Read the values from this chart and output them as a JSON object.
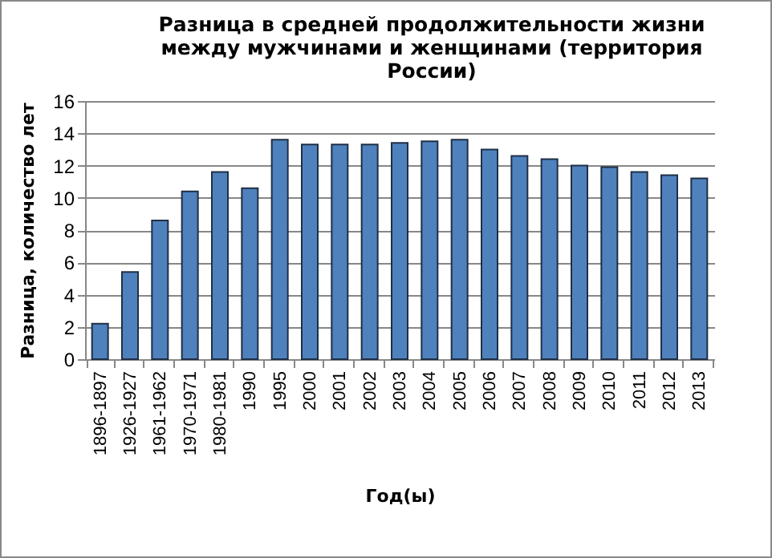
{
  "chart_data": {
    "type": "bar",
    "title": [
      "Разница в средней продолжительности жизни",
      "между мужчинами и женщинами  (территория",
      "России)"
    ],
    "xlabel": "Год(ы)",
    "ylabel": "Разница, количество  лет",
    "categories": [
      "1896-1897",
      "1926-1927",
      "1961-1962",
      "1970-1971",
      "1980-1981",
      "1990",
      "1995",
      "2000",
      "2001",
      "2002",
      "2003",
      "2004",
      "2005",
      "2006",
      "2007",
      "2008",
      "2009",
      "2010",
      "2011",
      "2012",
      "2013"
    ],
    "values": [
      2.2,
      5.4,
      8.6,
      10.4,
      11.6,
      10.6,
      13.6,
      13.3,
      13.3,
      13.3,
      13.4,
      13.5,
      13.6,
      13.0,
      12.6,
      12.4,
      12.0,
      11.9,
      11.6,
      11.4,
      11.2
    ],
    "color": "#4f81bd",
    "ylim": [
      0,
      16
    ],
    "yticks": [
      0,
      2,
      4,
      6,
      8,
      10,
      12,
      14,
      16
    ],
    "grid": "y"
  }
}
